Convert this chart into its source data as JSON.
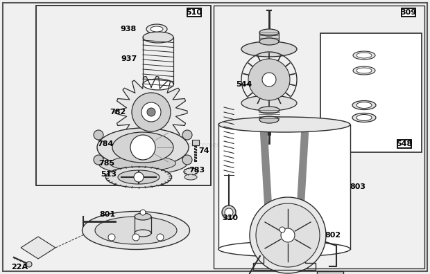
{
  "bg_color": "#f0f0f0",
  "line_color": "#2a2a2a",
  "watermark": "©ReplacementParts.com",
  "fig_w": 6.2,
  "fig_h": 3.96,
  "dpi": 100
}
